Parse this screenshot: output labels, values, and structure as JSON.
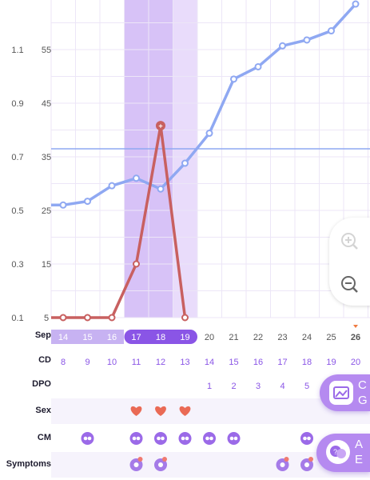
{
  "chart_data": {
    "type": "line",
    "x": [
      "14",
      "15",
      "16",
      "17",
      "18",
      "19",
      "20",
      "21",
      "22",
      "23",
      "24",
      "25",
      "26"
    ],
    "left_axis_ticks": [
      "0.1",
      "0.3",
      "0.5",
      "0.7",
      "0.9",
      "1.1"
    ],
    "right_axis_ticks": [
      "5",
      "15",
      "25",
      "35",
      "45",
      "55"
    ],
    "series": [
      {
        "values": [
          26,
          26.7,
          29.6,
          31,
          29,
          33.8,
          39.4,
          49.5,
          51.8,
          55.7,
          56.8,
          58.5,
          63.5
        ],
        "color": "#8fa8f2"
      },
      {
        "values": [
          5,
          5,
          5,
          15,
          40.8,
          5,
          null,
          null,
          null,
          null,
          null,
          null,
          null
        ],
        "color": "#c86060"
      }
    ],
    "reference_line": 36.5,
    "ylim": [
      5,
      62
    ],
    "highlight_fertile": [
      "17",
      "18",
      "19"
    ],
    "peak": "18"
  },
  "rows": {
    "month": "Sep",
    "cd_label": "CD",
    "cd": [
      "8",
      "9",
      "10",
      "11",
      "12",
      "13",
      "14",
      "15",
      "16",
      "17",
      "18",
      "19",
      "20"
    ],
    "dpo_label": "DPO",
    "dpo": [
      "",
      "",
      "",
      "",
      "",
      "",
      "1",
      "2",
      "3",
      "4",
      "5",
      "",
      ""
    ],
    "sex_label": "Sex",
    "sex": [
      false,
      false,
      false,
      true,
      true,
      true,
      false,
      false,
      false,
      false,
      false,
      false,
      false
    ],
    "cm_label": "CM",
    "cm": [
      "",
      "tear",
      "",
      "tear",
      "tear",
      "tear",
      "sticky",
      "sticky",
      "",
      "",
      "sticky",
      "",
      ""
    ],
    "symptoms_label": "Symptoms",
    "symptoms": [
      false,
      false,
      false,
      true,
      true,
      false,
      false,
      false,
      false,
      true,
      true,
      false,
      false
    ],
    "today": "26"
  },
  "fab": {
    "chart_text": [
      "C",
      "G"
    ],
    "ask_text": [
      "A",
      "E"
    ]
  },
  "colors": {
    "purple": "#8a55e6",
    "blue": "#8fa8f2",
    "red": "#c86060",
    "fertile": "#e9dcfb",
    "peakband": "#d7c2f7"
  },
  "icons": {
    "zoom_in": "zoom-in-icon",
    "zoom_out": "zoom-out-icon"
  }
}
